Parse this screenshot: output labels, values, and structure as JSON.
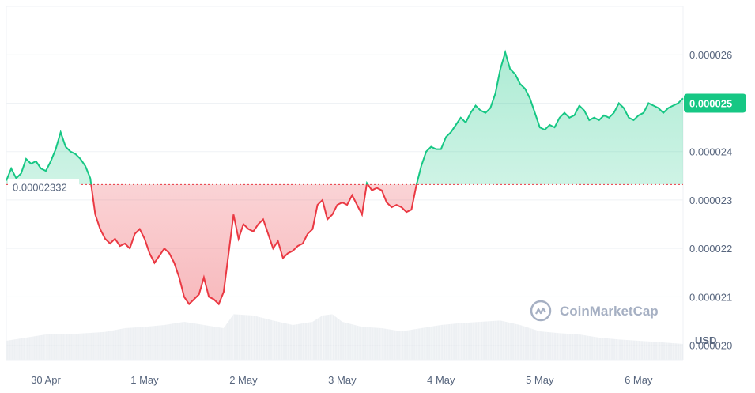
{
  "watermark": "CoinMarketCap",
  "currency": "USD",
  "colors": {
    "up": "#16c784",
    "down": "#ea3943",
    "grid": "#eff2f5",
    "text": "#58667e",
    "volume": "#e6e9ee"
  },
  "chart_data": {
    "type": "area",
    "baseline": 2.332e-05,
    "baseline_label": "0.00002332",
    "last_price": 2.5e-05,
    "last_price_label": "0.000025",
    "ylim": [
      1.97e-05,
      2.7e-05
    ],
    "y_ticks": [
      {
        "value": 2.6e-05,
        "label": "0.000026"
      },
      {
        "value": 2.5e-05,
        "label": "0.000025"
      },
      {
        "value": 2.4e-05,
        "label": "0.000024"
      },
      {
        "value": 2.3e-05,
        "label": "0.000023"
      },
      {
        "value": 2.2e-05,
        "label": "0.000022"
      },
      {
        "value": 2.1e-05,
        "label": "0.000021"
      },
      {
        "value": 2e-05,
        "label": "0.000020"
      }
    ],
    "x_range": [
      -0.4,
      6.45
    ],
    "x_ticks": [
      {
        "value": 0,
        "label": "30 Apr"
      },
      {
        "value": 1,
        "label": "1 May"
      },
      {
        "value": 2,
        "label": "2 May"
      },
      {
        "value": 3,
        "label": "3 May"
      },
      {
        "value": 4,
        "label": "4 May"
      },
      {
        "value": 5,
        "label": "5 May"
      },
      {
        "value": 6,
        "label": "6 May"
      }
    ],
    "series": [
      {
        "values": [
          [
            -0.4,
            23.4
          ],
          [
            -0.35,
            23.65
          ],
          [
            -0.3,
            23.45
          ],
          [
            -0.25,
            23.55
          ],
          [
            -0.2,
            23.85
          ],
          [
            -0.15,
            23.75
          ],
          [
            -0.1,
            23.8
          ],
          [
            -0.05,
            23.65
          ],
          [
            0.0,
            23.6
          ],
          [
            0.05,
            23.8
          ],
          [
            0.1,
            24.05
          ],
          [
            0.15,
            24.4
          ],
          [
            0.2,
            24.1
          ],
          [
            0.25,
            24.0
          ],
          [
            0.3,
            23.95
          ],
          [
            0.35,
            23.85
          ],
          [
            0.4,
            23.7
          ],
          [
            0.45,
            23.45
          ],
          [
            0.5,
            22.7
          ],
          [
            0.55,
            22.4
          ],
          [
            0.6,
            22.2
          ],
          [
            0.65,
            22.1
          ],
          [
            0.7,
            22.2
          ],
          [
            0.75,
            22.05
          ],
          [
            0.8,
            22.1
          ],
          [
            0.85,
            22.0
          ],
          [
            0.9,
            22.3
          ],
          [
            0.95,
            22.4
          ],
          [
            1.0,
            22.2
          ],
          [
            1.05,
            21.9
          ],
          [
            1.1,
            21.7
          ],
          [
            1.15,
            21.85
          ],
          [
            1.2,
            22.0
          ],
          [
            1.25,
            21.9
          ],
          [
            1.3,
            21.7
          ],
          [
            1.35,
            21.4
          ],
          [
            1.4,
            21.0
          ],
          [
            1.45,
            20.85
          ],
          [
            1.5,
            20.95
          ],
          [
            1.55,
            21.05
          ],
          [
            1.6,
            21.4
          ],
          [
            1.65,
            21.0
          ],
          [
            1.7,
            20.95
          ],
          [
            1.75,
            20.85
          ],
          [
            1.8,
            21.1
          ],
          [
            1.85,
            21.9
          ],
          [
            1.9,
            22.7
          ],
          [
            1.95,
            22.2
          ],
          [
            2.0,
            22.5
          ],
          [
            2.05,
            22.4
          ],
          [
            2.1,
            22.35
          ],
          [
            2.15,
            22.5
          ],
          [
            2.2,
            22.6
          ],
          [
            2.25,
            22.3
          ],
          [
            2.3,
            22.0
          ],
          [
            2.35,
            22.15
          ],
          [
            2.4,
            21.8
          ],
          [
            2.45,
            21.9
          ],
          [
            2.5,
            21.95
          ],
          [
            2.55,
            22.05
          ],
          [
            2.6,
            22.1
          ],
          [
            2.65,
            22.3
          ],
          [
            2.7,
            22.4
          ],
          [
            2.75,
            22.9
          ],
          [
            2.8,
            23.0
          ],
          [
            2.85,
            22.6
          ],
          [
            2.9,
            22.7
          ],
          [
            2.95,
            22.9
          ],
          [
            3.0,
            22.95
          ],
          [
            3.05,
            22.9
          ],
          [
            3.1,
            23.1
          ],
          [
            3.15,
            22.9
          ],
          [
            3.2,
            22.7
          ],
          [
            3.25,
            23.35
          ],
          [
            3.3,
            23.2
          ],
          [
            3.35,
            23.25
          ],
          [
            3.4,
            23.2
          ],
          [
            3.45,
            22.95
          ],
          [
            3.5,
            22.85
          ],
          [
            3.55,
            22.9
          ],
          [
            3.6,
            22.85
          ],
          [
            3.65,
            22.75
          ],
          [
            3.7,
            22.8
          ],
          [
            3.75,
            23.3
          ],
          [
            3.8,
            23.7
          ],
          [
            3.85,
            24.0
          ],
          [
            3.9,
            24.1
          ],
          [
            3.95,
            24.05
          ],
          [
            4.0,
            24.05
          ],
          [
            4.05,
            24.3
          ],
          [
            4.1,
            24.4
          ],
          [
            4.15,
            24.55
          ],
          [
            4.2,
            24.7
          ],
          [
            4.25,
            24.6
          ],
          [
            4.3,
            24.8
          ],
          [
            4.35,
            24.95
          ],
          [
            4.4,
            24.85
          ],
          [
            4.45,
            24.8
          ],
          [
            4.5,
            24.9
          ],
          [
            4.55,
            25.2
          ],
          [
            4.6,
            25.7
          ],
          [
            4.65,
            26.05
          ],
          [
            4.7,
            25.7
          ],
          [
            4.75,
            25.6
          ],
          [
            4.8,
            25.4
          ],
          [
            4.85,
            25.3
          ],
          [
            4.9,
            25.1
          ],
          [
            4.95,
            24.8
          ],
          [
            5.0,
            24.5
          ],
          [
            5.05,
            24.45
          ],
          [
            5.1,
            24.55
          ],
          [
            5.15,
            24.5
          ],
          [
            5.2,
            24.7
          ],
          [
            5.25,
            24.8
          ],
          [
            5.3,
            24.7
          ],
          [
            5.35,
            24.75
          ],
          [
            5.4,
            24.95
          ],
          [
            5.45,
            24.85
          ],
          [
            5.5,
            24.65
          ],
          [
            5.55,
            24.7
          ],
          [
            5.6,
            24.65
          ],
          [
            5.65,
            24.75
          ],
          [
            5.7,
            24.7
          ],
          [
            5.75,
            24.8
          ],
          [
            5.8,
            25.0
          ],
          [
            5.85,
            24.9
          ],
          [
            5.9,
            24.7
          ],
          [
            5.95,
            24.65
          ],
          [
            6.0,
            24.75
          ],
          [
            6.05,
            24.8
          ],
          [
            6.1,
            25.0
          ],
          [
            6.15,
            24.95
          ],
          [
            6.2,
            24.9
          ],
          [
            6.25,
            24.8
          ],
          [
            6.3,
            24.9
          ],
          [
            6.35,
            24.95
          ],
          [
            6.4,
            25.0
          ],
          [
            6.45,
            25.1
          ]
        ]
      }
    ],
    "value_scale": 1e-06,
    "volume": [
      [
        -0.4,
        0.3
      ],
      [
        -0.2,
        0.35
      ],
      [
        0.0,
        0.4
      ],
      [
        0.2,
        0.4
      ],
      [
        0.4,
        0.42
      ],
      [
        0.6,
        0.44
      ],
      [
        0.8,
        0.5
      ],
      [
        1.0,
        0.52
      ],
      [
        1.2,
        0.55
      ],
      [
        1.4,
        0.6
      ],
      [
        1.6,
        0.55
      ],
      [
        1.8,
        0.5
      ],
      [
        1.9,
        0.72
      ],
      [
        2.1,
        0.7
      ],
      [
        2.3,
        0.62
      ],
      [
        2.5,
        0.55
      ],
      [
        2.7,
        0.6
      ],
      [
        2.8,
        0.7
      ],
      [
        2.9,
        0.72
      ],
      [
        3.0,
        0.6
      ],
      [
        3.2,
        0.52
      ],
      [
        3.4,
        0.5
      ],
      [
        3.6,
        0.45
      ],
      [
        3.8,
        0.5
      ],
      [
        4.0,
        0.55
      ],
      [
        4.2,
        0.58
      ],
      [
        4.4,
        0.6
      ],
      [
        4.6,
        0.62
      ],
      [
        4.8,
        0.55
      ],
      [
        5.0,
        0.45
      ],
      [
        5.2,
        0.42
      ],
      [
        5.4,
        0.4
      ],
      [
        5.6,
        0.35
      ],
      [
        5.8,
        0.32
      ],
      [
        6.0,
        0.3
      ],
      [
        6.2,
        0.28
      ],
      [
        6.45,
        0.25
      ]
    ]
  }
}
